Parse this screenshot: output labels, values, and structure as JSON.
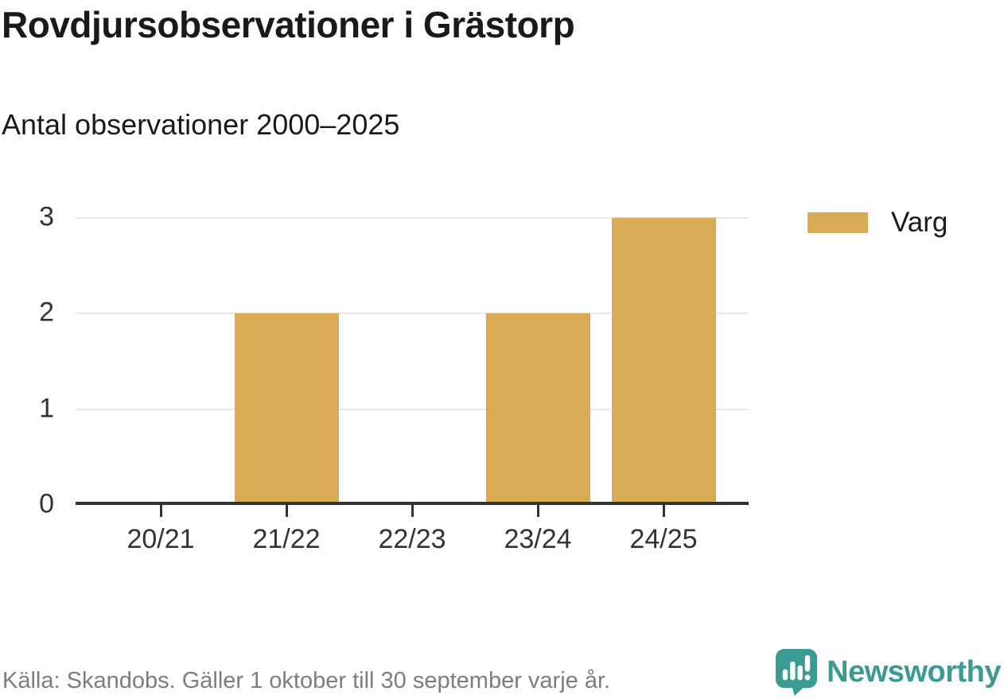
{
  "header": {
    "title": "Rovdjursobservationer i Grästorp",
    "subtitle": "Antal observationer 2000–2025"
  },
  "legend": {
    "items": [
      {
        "label": "Varg",
        "color": "#d8ab54"
      }
    ]
  },
  "footer": {
    "source": "Källa: Skandobs. Gäller 1 oktober till 30 september varje år.",
    "brand": "Newsworthy"
  },
  "colors": {
    "bar": "#d8ab54",
    "axis": "#333333",
    "gridline": "#e6e6e6",
    "tick_label": "#333333",
    "brand_teal": "#3b9a92",
    "source_gray": "#7d7d7d"
  },
  "chart_data": {
    "type": "bar",
    "title": "Rovdjursobservationer i Grästorp",
    "subtitle": "Antal observationer 2000–2025",
    "categories": [
      "20/21",
      "21/22",
      "22/23",
      "23/24",
      "24/25"
    ],
    "series": [
      {
        "name": "Varg",
        "color": "#d8ab54",
        "values": [
          0,
          2,
          0,
          2,
          3
        ]
      }
    ],
    "xlabel": "",
    "ylabel": "",
    "ylim": [
      0,
      3
    ],
    "yticks": [
      0,
      1,
      2,
      3
    ],
    "grid": true,
    "legend_position": "top-right"
  }
}
